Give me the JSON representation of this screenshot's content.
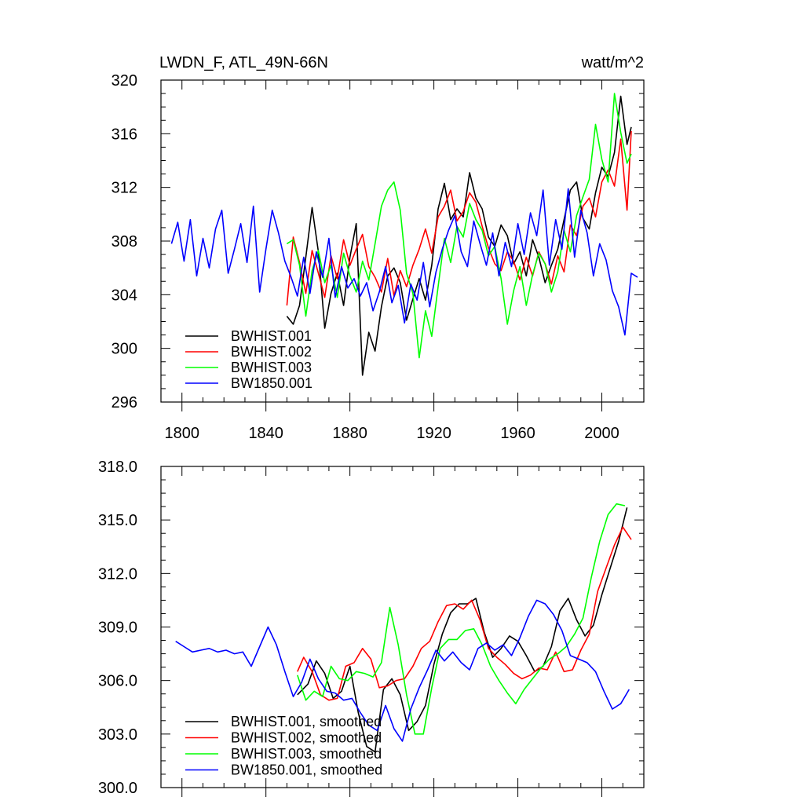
{
  "chart_data": [
    {
      "type": "line",
      "title": "LWDN_F, ATL_49N-66N",
      "units": "watt/m^2",
      "xlabel": "",
      "ylabel": "",
      "xlim": [
        1790,
        2020
      ],
      "ylim": [
        296,
        320
      ],
      "xticks": [
        1800,
        1840,
        1880,
        1920,
        1960,
        2000
      ],
      "xtick_labels": [
        "1800",
        "1840",
        "1880",
        "1920",
        "1960",
        "2000"
      ],
      "yticks": [
        296,
        300,
        304,
        308,
        312,
        316,
        320
      ],
      "ytick_labels": [
        "296",
        "300",
        "304",
        "308",
        "312",
        "316",
        "320"
      ],
      "legend_position": "bottom-left",
      "series": [
        {
          "name": "BWHIST.001",
          "color": "#000000",
          "x": [
            1850,
            1853,
            1856,
            1859,
            1862,
            1865,
            1868,
            1871,
            1874,
            1877,
            1880,
            1883,
            1886,
            1889,
            1892,
            1895,
            1898,
            1901,
            1904,
            1907,
            1910,
            1913,
            1916,
            1919,
            1922,
            1925,
            1928,
            1931,
            1934,
            1937,
            1940,
            1943,
            1946,
            1949,
            1952,
            1955,
            1958,
            1961,
            1964,
            1967,
            1970,
            1973,
            1976,
            1979,
            1982,
            1985,
            1988,
            1991,
            1994,
            1997,
            2000,
            2003,
            2006,
            2009,
            2012,
            2014
          ],
          "values": [
            302.4,
            301.8,
            303.2,
            306.8,
            310.5,
            307.2,
            301.5,
            304.1,
            305.6,
            303.2,
            306.8,
            309.3,
            298.0,
            301.2,
            299.8,
            303.1,
            305.4,
            306.0,
            304.9,
            302.1,
            303.7,
            305.2,
            303.6,
            306.2,
            310.4,
            312.3,
            309.6,
            310.4,
            309.8,
            313.1,
            311.2,
            310.4,
            308.3,
            307.6,
            309.2,
            308.4,
            306.3,
            307.2,
            305.4,
            308.1,
            306.8,
            304.9,
            306.2,
            307.4,
            309.6,
            311.8,
            312.4,
            309.7,
            308.9,
            311.6,
            313.5,
            312.8,
            314.6,
            318.8,
            315.2,
            316.5
          ]
        },
        {
          "name": "BWHIST.002",
          "color": "#ff0000",
          "x": [
            1850,
            1853,
            1856,
            1859,
            1862,
            1865,
            1868,
            1871,
            1874,
            1877,
            1880,
            1883,
            1886,
            1889,
            1892,
            1895,
            1898,
            1901,
            1904,
            1907,
            1910,
            1913,
            1916,
            1919,
            1922,
            1925,
            1928,
            1931,
            1934,
            1937,
            1940,
            1943,
            1946,
            1949,
            1952,
            1955,
            1958,
            1961,
            1964,
            1967,
            1970,
            1973,
            1976,
            1979,
            1982,
            1985,
            1988,
            1991,
            1994,
            1997,
            2000,
            2003,
            2006,
            2009,
            2012,
            2014
          ],
          "values": [
            303.2,
            308.3,
            306.4,
            304.1,
            307.3,
            305.6,
            303.8,
            306.9,
            305.2,
            308.1,
            306.2,
            307.4,
            308.5,
            306.1,
            305.3,
            304.2,
            306.7,
            303.9,
            305.8,
            304.6,
            306.2,
            307.4,
            308.9,
            307.1,
            309.8,
            310.6,
            311.8,
            309.5,
            310.2,
            311.6,
            310.9,
            309.1,
            307.5,
            306.3,
            305.8,
            307.2,
            306.5,
            305.1,
            306.8,
            305.4,
            307.2,
            306.3,
            304.8,
            306.9,
            305.7,
            309.2,
            308.4,
            310.6,
            311.2,
            309.8,
            312.4,
            313.3,
            312.1,
            315.6,
            310.3,
            316.2
          ]
        },
        {
          "name": "BWHIST.003",
          "color": "#00ff00",
          "x": [
            1850,
            1853,
            1856,
            1859,
            1862,
            1865,
            1868,
            1871,
            1874,
            1877,
            1880,
            1883,
            1886,
            1889,
            1892,
            1895,
            1898,
            1901,
            1904,
            1907,
            1910,
            1913,
            1916,
            1919,
            1922,
            1925,
            1928,
            1931,
            1934,
            1937,
            1940,
            1943,
            1946,
            1949,
            1952,
            1955,
            1958,
            1961,
            1964,
            1967,
            1970,
            1973,
            1976,
            1979,
            1982,
            1985,
            1988,
            1991,
            1994,
            1997,
            2000,
            2003,
            2006,
            2009,
            2012,
            2014
          ],
          "values": [
            307.8,
            308.1,
            306.2,
            302.4,
            305.8,
            307.3,
            304.9,
            306.2,
            303.8,
            307.1,
            305.4,
            304.2,
            306.5,
            305.1,
            307.8,
            310.6,
            311.8,
            312.4,
            310.3,
            305.6,
            304.1,
            299.3,
            302.8,
            300.9,
            304.6,
            308.2,
            306.4,
            309.1,
            308.3,
            310.8,
            309.6,
            308.8,
            306.9,
            307.6,
            305.2,
            301.8,
            304.3,
            306.1,
            303.2,
            305.5,
            307.1,
            306.3,
            304.2,
            305.7,
            308.8,
            307.2,
            309.9,
            311.3,
            312.6,
            316.7,
            314.1,
            312.4,
            319.0,
            316.1,
            313.8,
            314.5
          ]
        },
        {
          "name": "BW1850.001",
          "color": "#0000ff",
          "x": [
            1795,
            1798,
            1801,
            1804,
            1807,
            1810,
            1813,
            1816,
            1819,
            1822,
            1825,
            1828,
            1831,
            1834,
            1837,
            1840,
            1843,
            1846,
            1849,
            1852,
            1855,
            1858,
            1861,
            1864,
            1867,
            1870,
            1873,
            1876,
            1879,
            1882,
            1885,
            1888,
            1891,
            1894,
            1897,
            1900,
            1903,
            1906,
            1909,
            1912,
            1915,
            1918,
            1921,
            1924,
            1927,
            1930,
            1933,
            1936,
            1939,
            1942,
            1945,
            1948,
            1951,
            1954,
            1957,
            1960,
            1963,
            1966,
            1969,
            1972,
            1975,
            1978,
            1981,
            1984,
            1987,
            1990,
            1993,
            1996,
            1999,
            2002,
            2005,
            2008,
            2011,
            2014,
            2017
          ],
          "values": [
            307.8,
            309.4,
            306.5,
            309.6,
            305.4,
            308.2,
            306.0,
            308.9,
            310.3,
            305.6,
            307.4,
            309.3,
            306.4,
            310.6,
            304.2,
            307.4,
            310.3,
            308.6,
            306.5,
            305.3,
            303.9,
            306.8,
            304.1,
            307.2,
            305.3,
            308.2,
            303.8,
            306.1,
            304.5,
            305.2,
            303.9,
            304.9,
            302.8,
            304.2,
            306.1,
            303.4,
            304.7,
            301.9,
            304.8,
            303.6,
            306.4,
            303.1,
            305.7,
            307.4,
            308.8,
            309.9,
            307.2,
            306.1,
            309.5,
            307.8,
            306.2,
            308.6,
            305.4,
            307.9,
            306.1,
            309.3,
            307.0,
            310.1,
            308.4,
            311.8,
            306.2,
            309.6,
            307.4,
            311.9,
            306.8,
            310.3,
            308.6,
            305.4,
            307.8,
            306.6,
            304.3,
            303.1,
            301.0,
            305.6,
            305.3
          ]
        }
      ]
    },
    {
      "type": "line",
      "title": "",
      "units": "",
      "xlabel": "",
      "ylabel": "",
      "xlim": [
        1790,
        2020
      ],
      "ylim": [
        300,
        318
      ],
      "xticks": [
        1800,
        1840,
        1880,
        1920,
        1960,
        2000
      ],
      "xtick_labels": [
        "",
        "",
        "",
        "",
        "",
        ""
      ],
      "yticks": [
        300,
        303,
        306,
        309,
        312,
        315,
        318
      ],
      "ytick_labels": [
        "300.0",
        "303.0",
        "306.0",
        "309.0",
        "312.0",
        "315.0",
        "318.0"
      ],
      "legend_position": "bottom-left",
      "series": [
        {
          "name": "BWHIST.001, smoothed",
          "color": "#000000",
          "x": [
            1855,
            1860,
            1864,
            1868,
            1872,
            1876,
            1880,
            1884,
            1888,
            1892,
            1896,
            1900,
            1904,
            1908,
            1912,
            1916,
            1920,
            1924,
            1928,
            1932,
            1936,
            1940,
            1944,
            1948,
            1952,
            1956,
            1960,
            1964,
            1968,
            1972,
            1976,
            1980,
            1984,
            1988,
            1992,
            1996,
            2000,
            2004,
            2008,
            2012
          ],
          "values": [
            305.2,
            305.8,
            307.1,
            306.4,
            305.0,
            305.4,
            306.8,
            304.2,
            302.3,
            302.0,
            305.5,
            306.1,
            305.2,
            303.2,
            303.7,
            304.6,
            306.9,
            308.6,
            309.8,
            310.3,
            310.3,
            310.6,
            308.7,
            307.3,
            307.8,
            308.5,
            308.2,
            307.4,
            306.5,
            306.8,
            307.9,
            309.9,
            310.6,
            309.4,
            308.5,
            309.1,
            310.8,
            312.3,
            313.8,
            315.7
          ]
        },
        {
          "name": "BWHIST.002, smoothed",
          "color": "#ff0000",
          "x": [
            1855,
            1858,
            1862,
            1866,
            1870,
            1874,
            1878,
            1882,
            1886,
            1890,
            1894,
            1898,
            1902,
            1906,
            1910,
            1914,
            1918,
            1922,
            1926,
            1930,
            1934,
            1938,
            1942,
            1946,
            1950,
            1954,
            1958,
            1962,
            1966,
            1970,
            1974,
            1978,
            1982,
            1986,
            1990,
            1994,
            1998,
            2002,
            2006,
            2010,
            2014
          ],
          "values": [
            306.5,
            307.3,
            306.5,
            305.2,
            304.9,
            305.0,
            306.8,
            307.0,
            307.8,
            307.2,
            305.6,
            305.7,
            306.0,
            306.1,
            306.8,
            307.8,
            308.2,
            309.3,
            310.2,
            310.3,
            310.0,
            310.5,
            309.4,
            307.8,
            307.3,
            306.9,
            306.4,
            306.1,
            306.3,
            306.7,
            306.6,
            307.6,
            306.5,
            306.6,
            307.7,
            308.6,
            311.0,
            312.3,
            313.6,
            314.6,
            313.9
          ]
        },
        {
          "name": "BWHIST.003, smoothed",
          "color": "#00ff00",
          "x": [
            1855,
            1859,
            1863,
            1867,
            1871,
            1875,
            1879,
            1883,
            1887,
            1891,
            1895,
            1899,
            1903,
            1907,
            1911,
            1915,
            1919,
            1923,
            1927,
            1931,
            1935,
            1939,
            1943,
            1947,
            1951,
            1955,
            1959,
            1963,
            1967,
            1971,
            1975,
            1979,
            1983,
            1987,
            1991,
            1995,
            1999,
            2003,
            2007,
            2011
          ],
          "values": [
            306.3,
            304.9,
            305.4,
            305.1,
            306.8,
            306.1,
            306.0,
            306.5,
            306.4,
            306.2,
            307.0,
            310.1,
            308.0,
            305.2,
            303.0,
            303.0,
            305.6,
            307.8,
            308.3,
            308.3,
            308.8,
            308.9,
            308.0,
            306.8,
            306.0,
            305.3,
            304.7,
            305.5,
            306.1,
            306.7,
            307.2,
            307.5,
            307.9,
            308.6,
            309.5,
            311.8,
            313.8,
            315.3,
            315.9,
            315.8
          ]
        },
        {
          "name": "BW1850.001, smoothed",
          "color": "#0000ff",
          "x": [
            1797,
            1801,
            1805,
            1809,
            1813,
            1817,
            1821,
            1825,
            1829,
            1833,
            1837,
            1841,
            1845,
            1849,
            1853,
            1857,
            1861,
            1865,
            1869,
            1873,
            1877,
            1881,
            1885,
            1889,
            1893,
            1897,
            1901,
            1905,
            1909,
            1913,
            1917,
            1921,
            1925,
            1929,
            1933,
            1937,
            1941,
            1945,
            1949,
            1953,
            1957,
            1961,
            1965,
            1969,
            1973,
            1977,
            1981,
            1985,
            1989,
            1993,
            1997,
            2001,
            2005,
            2009,
            2013
          ],
          "values": [
            308.2,
            307.9,
            307.6,
            307.7,
            307.8,
            307.6,
            307.7,
            307.5,
            307.6,
            306.8,
            307.9,
            309.0,
            308.0,
            306.5,
            305.1,
            305.9,
            307.2,
            306.1,
            305.4,
            305.3,
            304.9,
            305.0,
            304.2,
            303.5,
            303.2,
            304.6,
            303.3,
            302.6,
            304.4,
            305.6,
            306.6,
            307.7,
            307.1,
            307.6,
            307.0,
            306.6,
            307.8,
            308.1,
            307.7,
            308.0,
            307.4,
            308.4,
            309.6,
            310.5,
            310.3,
            309.7,
            308.8,
            307.4,
            307.2,
            307.0,
            306.5,
            305.4,
            304.4,
            304.7,
            305.5
          ]
        }
      ]
    }
  ]
}
